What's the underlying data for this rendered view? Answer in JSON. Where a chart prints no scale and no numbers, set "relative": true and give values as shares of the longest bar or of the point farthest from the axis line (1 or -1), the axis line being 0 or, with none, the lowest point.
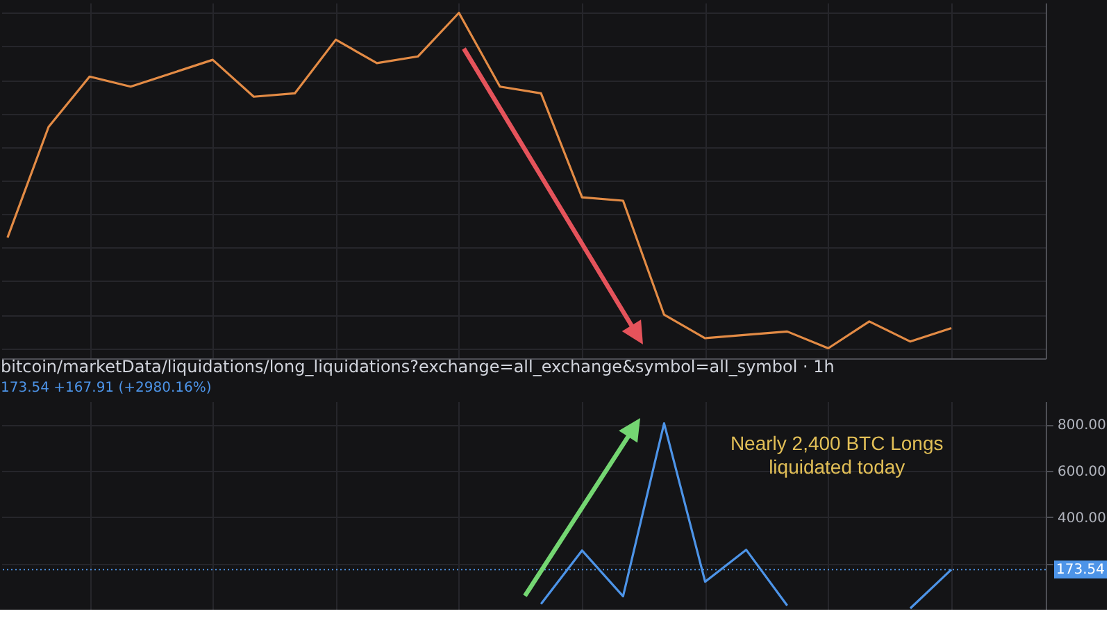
{
  "chart_data": [
    {
      "type": "line",
      "categories": [
        null,
        null,
        null,
        null,
        null,
        null,
        null,
        null,
        null,
        null,
        null,
        null,
        null,
        null,
        null,
        null,
        null,
        null,
        null,
        null,
        null,
        null,
        null,
        null
      ],
      "relative": true,
      "series": [
        {
          "color": "#e38b45",
          "values": [
            0.33,
            0.66,
            0.81,
            0.78,
            0.82,
            0.86,
            0.75,
            0.76,
            0.92,
            0.85,
            0.87,
            1.0,
            0.78,
            0.76,
            0.45,
            0.44,
            0.1,
            0.03,
            0.04,
            0.05,
            0,
            0.08,
            0.02,
            0.06
          ]
        }
      ],
      "grid": true,
      "tick_labels": false
    },
    {
      "type": "line",
      "title": "bitcoin/marketData/liquidations/long_liquidations?exchange=all_exchange&symbol=all_symbol · 1h",
      "subtitle": "173.54 +167.91 (+2980.16%)",
      "categories": [
        null,
        null,
        null,
        null,
        null,
        null,
        null,
        null,
        null,
        null,
        null,
        null,
        null,
        null,
        null,
        null,
        null,
        null,
        null,
        null,
        null,
        null,
        null,
        null
      ],
      "series": [
        {
          "color": "#4d94e8",
          "values": [
            null,
            null,
            null,
            null,
            null,
            null,
            null,
            null,
            null,
            null,
            null,
            null,
            null,
            25,
            256,
            58,
            805,
            121,
            259,
            18,
            null,
            null,
            6,
            173.54
          ]
        }
      ],
      "ylim": [
        0,
        900
      ],
      "yticks": [
        {
          "value": 200,
          "label": null
        },
        {
          "value": 400,
          "label": "400.00"
        },
        {
          "value": 600,
          "label": "600.00"
        },
        {
          "value": 800,
          "label": "800.00"
        }
      ],
      "ref_lines": [
        {
          "axis": "y",
          "value": 173.54,
          "label": "173.54",
          "color": "#4d94e8",
          "line_style": "dotted"
        }
      ],
      "annotations": [
        "Nearly 2,400 BTC Longs liquidated today"
      ],
      "grid": true,
      "tick_labels": "y"
    }
  ]
}
